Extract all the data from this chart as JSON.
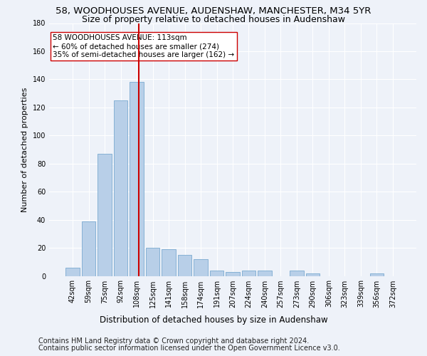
{
  "title": "58, WOODHOUSES AVENUE, AUDENSHAW, MANCHESTER, M34 5YR",
  "subtitle": "Size of property relative to detached houses in Audenshaw",
  "xlabel": "Distribution of detached houses by size in Audenshaw",
  "ylabel": "Number of detached properties",
  "categories": [
    "42sqm",
    "59sqm",
    "75sqm",
    "92sqm",
    "108sqm",
    "125sqm",
    "141sqm",
    "158sqm",
    "174sqm",
    "191sqm",
    "207sqm",
    "224sqm",
    "240sqm",
    "257sqm",
    "273sqm",
    "290sqm",
    "306sqm",
    "323sqm",
    "339sqm",
    "356sqm",
    "372sqm"
  ],
  "values": [
    6,
    39,
    87,
    125,
    138,
    20,
    19,
    15,
    12,
    4,
    3,
    4,
    4,
    0,
    4,
    2,
    0,
    0,
    0,
    2,
    0
  ],
  "bar_color": "#b8cfe8",
  "bar_edge_color": "#7aaad0",
  "vline_pos": 4.15,
  "vline_color": "#cc0000",
  "annotation_text": "58 WOODHOUSES AVENUE: 113sqm\n← 60% of detached houses are smaller (274)\n35% of semi-detached houses are larger (162) →",
  "annotation_box_color": "#ffffff",
  "annotation_box_edge": "#cc0000",
  "ylim": [
    0,
    180
  ],
  "yticks": [
    0,
    20,
    40,
    60,
    80,
    100,
    120,
    140,
    160,
    180
  ],
  "footer1": "Contains HM Land Registry data © Crown copyright and database right 2024.",
  "footer2": "Contains public sector information licensed under the Open Government Licence v3.0.",
  "background_color": "#eef2f9",
  "grid_color": "#ffffff",
  "title_fontsize": 9.5,
  "subtitle_fontsize": 9,
  "axis_label_fontsize": 8.5,
  "ylabel_fontsize": 8,
  "tick_fontsize": 7,
  "footer_fontsize": 7,
  "annotation_fontsize": 7.5
}
